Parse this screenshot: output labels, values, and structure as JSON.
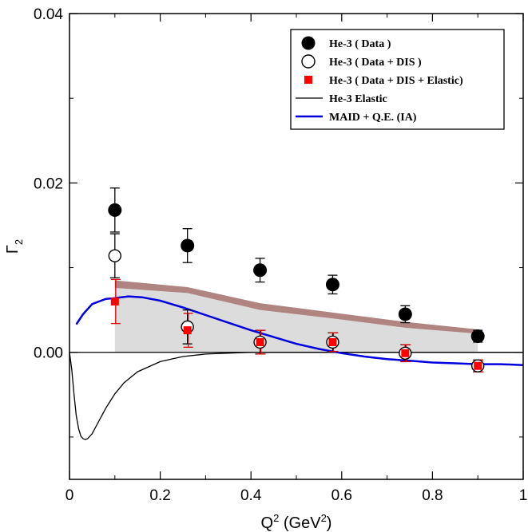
{
  "chart_data": {
    "type": "scatter",
    "xlabel_base": "Q",
    "xlabel_sup1": "2",
    "xlabel_mid": " (GeV",
    "xlabel_sup2": "2",
    "xlabel_end": ")",
    "ylabel": "Γ",
    "ylabel_sub": "2",
    "xlim": [
      0,
      1
    ],
    "ylim": [
      -0.015,
      0.04
    ],
    "x_ticks": [
      {
        "v": 0,
        "label": "0"
      },
      {
        "v": 0.2,
        "label": "0.2"
      },
      {
        "v": 0.4,
        "label": "0.4"
      },
      {
        "v": 0.6,
        "label": "0.6"
      },
      {
        "v": 0.8,
        "label": "0.8"
      },
      {
        "v": 1.0,
        "label": "1"
      }
    ],
    "y_ticks": [
      {
        "v": 0.0,
        "label": "0.00"
      },
      {
        "v": 0.02,
        "label": "0.02"
      },
      {
        "v": 0.04,
        "label": "0.04"
      }
    ],
    "legend_position": "top-right",
    "legend": [
      {
        "label": "He-3 ( Data )",
        "marker": "filled-circle",
        "color": "#000000"
      },
      {
        "label": "He-3 ( Data + DIS )",
        "marker": "open-circle",
        "color": "#000000"
      },
      {
        "label": "He-3 ( Data + DIS + Elastic)",
        "marker": "square",
        "color": "#ff0000"
      },
      {
        "label": "He-3 Elastic",
        "marker": "line",
        "color": "#000000"
      },
      {
        "label": "MAID + Q.E. (IA)",
        "marker": "line",
        "color": "#0000dd"
      }
    ],
    "series": [
      {
        "name": "He-3 ( Data )",
        "color": "#000000",
        "points": [
          {
            "x": 0.1,
            "y": 0.0168,
            "err": 0.0026
          },
          {
            "x": 0.26,
            "y": 0.0126,
            "err": 0.002
          },
          {
            "x": 0.42,
            "y": 0.0097,
            "err": 0.0014
          },
          {
            "x": 0.58,
            "y": 0.008,
            "err": 0.0011
          },
          {
            "x": 0.74,
            "y": 0.0045,
            "err": 0.001
          },
          {
            "x": 0.9,
            "y": 0.0019,
            "err": 0.0007
          }
        ]
      },
      {
        "name": "He-3 ( Data + DIS )",
        "color": "#000000",
        "points": [
          {
            "x": 0.1,
            "y": 0.0114,
            "err": 0.0026
          },
          {
            "x": 0.26,
            "y": 0.003,
            "err": 0.002
          },
          {
            "x": 0.42,
            "y": 0.0012,
            "err": 0.0014
          },
          {
            "x": 0.58,
            "y": 0.0012,
            "err": 0.0011
          },
          {
            "x": 0.74,
            "y": -0.0001,
            "err": 0.001
          },
          {
            "x": 0.9,
            "y": -0.0016,
            "err": 0.0007
          }
        ]
      },
      {
        "name": "He-3 ( Data + DIS + Elastic)",
        "color": "#ff0000",
        "points": [
          {
            "x": 0.1,
            "y": 0.006,
            "err": 0.0026
          },
          {
            "x": 0.26,
            "y": 0.0026,
            "err": 0.002
          },
          {
            "x": 0.42,
            "y": 0.0012,
            "err": 0.0014
          },
          {
            "x": 0.58,
            "y": 0.0012,
            "err": 0.0011
          },
          {
            "x": 0.74,
            "y": -0.0001,
            "err": 0.001
          },
          {
            "x": 0.9,
            "y": -0.0016,
            "err": 0.0007
          }
        ]
      },
      {
        "name": "He-3 Elastic",
        "color": "#000000",
        "line": [
          [
            0.0,
            0.0
          ],
          [
            0.005,
            -0.002
          ],
          [
            0.01,
            -0.005
          ],
          [
            0.015,
            -0.0075
          ],
          [
            0.02,
            -0.009
          ],
          [
            0.025,
            -0.0099
          ],
          [
            0.03,
            -0.0102
          ],
          [
            0.035,
            -0.0103
          ],
          [
            0.04,
            -0.0102
          ],
          [
            0.05,
            -0.0096
          ],
          [
            0.06,
            -0.0086
          ],
          [
            0.08,
            -0.0066
          ],
          [
            0.1,
            -0.0049
          ],
          [
            0.12,
            -0.0036
          ],
          [
            0.15,
            -0.0023
          ],
          [
            0.2,
            -0.0011
          ],
          [
            0.25,
            -0.0005
          ],
          [
            0.3,
            -0.0002
          ],
          [
            0.4,
            0.0
          ],
          [
            1.0,
            0.0
          ]
        ]
      },
      {
        "name": "MAID + Q.E. (IA)",
        "color": "#0000dd",
        "line": [
          [
            0.015,
            0.0033
          ],
          [
            0.03,
            0.0045
          ],
          [
            0.05,
            0.0057
          ],
          [
            0.08,
            0.0063
          ],
          [
            0.1,
            0.0064
          ],
          [
            0.13,
            0.0066
          ],
          [
            0.16,
            0.0065
          ],
          [
            0.2,
            0.0061
          ],
          [
            0.25,
            0.0053
          ],
          [
            0.3,
            0.0044
          ],
          [
            0.35,
            0.0035
          ],
          [
            0.4,
            0.0026
          ],
          [
            0.45,
            0.0018
          ],
          [
            0.5,
            0.001
          ],
          [
            0.55,
            0.0004
          ],
          [
            0.6,
            -0.0001
          ],
          [
            0.65,
            -0.0005
          ],
          [
            0.7,
            -0.0008
          ],
          [
            0.75,
            -0.001
          ],
          [
            0.8,
            -0.0012
          ],
          [
            0.85,
            -0.0013
          ],
          [
            0.9,
            -0.0014
          ],
          [
            0.95,
            -0.0014
          ],
          [
            1.0,
            -0.0015
          ]
        ]
      }
    ],
    "gray_band": {
      "x": [
        0.1,
        0.26,
        0.42,
        0.58,
        0.74,
        0.9
      ],
      "upper": [
        0.0076,
        0.007,
        0.005,
        0.004,
        0.0029,
        0.0022
      ],
      "lower": [
        0.0,
        0.0,
        0.0,
        0.0,
        0.0,
        0.0
      ],
      "color": "#dcdcdc"
    },
    "brown_band": {
      "x": [
        0.1,
        0.26,
        0.42,
        0.58,
        0.74,
        0.9
      ],
      "upper": [
        0.0085,
        0.0077,
        0.0058,
        0.0047,
        0.0036,
        0.0027
      ],
      "lower": [
        0.0076,
        0.007,
        0.005,
        0.004,
        0.0029,
        0.0022
      ],
      "color": "#b08480"
    }
  }
}
